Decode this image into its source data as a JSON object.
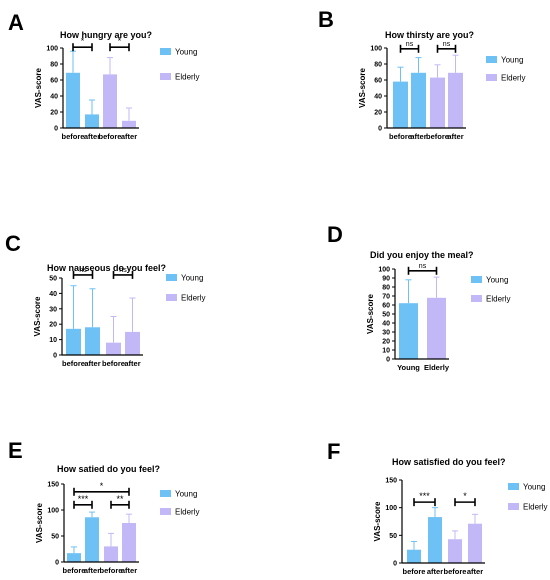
{
  "colors": {
    "young": "#6ec1f5",
    "elderly": "#c3b8f7",
    "axis": "#000000"
  },
  "chart_data": [
    {
      "panel": "A",
      "type": "bar",
      "title": "How hungry are you?",
      "ylabel": "VAS-score",
      "categories": [
        "before",
        "after",
        "before",
        "after"
      ],
      "values": [
        69,
        17,
        67,
        9
      ],
      "errors": [
        27,
        18,
        21,
        16
      ],
      "groups": [
        "young",
        "young",
        "elderly",
        "elderly"
      ],
      "yticks": [
        0,
        20,
        40,
        60,
        80,
        100
      ],
      "ylim": [
        0,
        100
      ],
      "legend": [
        "Young",
        "Elderly"
      ],
      "significance": [
        {
          "from": 0,
          "to": 1,
          "label": "*",
          "y": 101
        },
        {
          "from": 2,
          "to": 3,
          "label": "*",
          "y": 101
        }
      ]
    },
    {
      "panel": "B",
      "type": "bar",
      "title": "How thirsty are you?",
      "ylabel": "VAS-score",
      "categories": [
        "before",
        "after",
        "before",
        "after"
      ],
      "values": [
        58,
        69,
        63,
        69
      ],
      "errors": [
        18,
        19,
        16,
        22
      ],
      "groups": [
        "young",
        "young",
        "elderly",
        "elderly"
      ],
      "yticks": [
        0,
        20,
        40,
        60,
        80,
        100
      ],
      "ylim": [
        0,
        100
      ],
      "legend": [
        "Young",
        "Elderly"
      ],
      "significance": [
        {
          "from": 0,
          "to": 1,
          "label": "ns",
          "y": 99
        },
        {
          "from": 2,
          "to": 3,
          "label": "ns",
          "y": 99
        }
      ]
    },
    {
      "panel": "C",
      "type": "bar",
      "title": "How nauseous do you feel?",
      "ylabel": "VAS-score",
      "categories": [
        "before",
        "after",
        "before",
        "after"
      ],
      "values": [
        17,
        18,
        8,
        15
      ],
      "errors": [
        28,
        25,
        17,
        22
      ],
      "groups": [
        "young",
        "young",
        "elderly",
        "elderly"
      ],
      "yticks": [
        0,
        10,
        20,
        30,
        40,
        50
      ],
      "ylim": [
        0,
        50
      ],
      "legend": [
        "Young",
        "Elderly"
      ],
      "significance": [
        {
          "from": 0,
          "to": 1,
          "label": "ns",
          "y": 52
        },
        {
          "from": 2,
          "to": 3,
          "label": "ns",
          "y": 52
        }
      ]
    },
    {
      "panel": "D",
      "type": "bar",
      "title": "Did you enjoy the meal?",
      "ylabel": "VAS-score",
      "categories": [
        "Young",
        "Elderly"
      ],
      "values": [
        62,
        68
      ],
      "errors": [
        26,
        23
      ],
      "groups": [
        "young",
        "elderly"
      ],
      "yticks": [
        0,
        10,
        20,
        30,
        40,
        50,
        60,
        70,
        80,
        90,
        100
      ],
      "ylim": [
        0,
        100
      ],
      "legend": [
        "Young",
        "Elderly"
      ],
      "significance": [
        {
          "from": 0,
          "to": 1,
          "label": "ns",
          "y": 98
        }
      ]
    },
    {
      "panel": "E",
      "type": "bar",
      "title": "How satied do you feel?",
      "ylabel": "VAS-score",
      "categories": [
        "before",
        "after",
        "before",
        "after"
      ],
      "values": [
        17,
        86,
        30,
        75
      ],
      "errors": [
        12,
        10,
        25,
        17
      ],
      "groups": [
        "young",
        "young",
        "elderly",
        "elderly"
      ],
      "yticks": [
        0,
        50,
        100,
        150
      ],
      "ylim": [
        0,
        150
      ],
      "legend": [
        "Young",
        "Elderly"
      ],
      "significance": [
        {
          "from": 0,
          "to": 1,
          "label": "***",
          "y": 110
        },
        {
          "from": 2,
          "to": 3,
          "label": "**",
          "y": 110
        },
        {
          "from": 0,
          "to": 3,
          "label": "*",
          "y": 135
        }
      ]
    },
    {
      "panel": "F",
      "type": "bar",
      "title": "How satisfied do you feel?",
      "ylabel": "VAS-score",
      "categories": [
        "before",
        "after",
        "before",
        "after"
      ],
      "values": [
        24,
        83,
        43,
        71
      ],
      "errors": [
        15,
        17,
        15,
        17
      ],
      "groups": [
        "young",
        "young",
        "elderly",
        "elderly"
      ],
      "yticks": [
        0,
        50,
        100,
        150
      ],
      "ylim": [
        0,
        150
      ],
      "legend": [
        "Young",
        "Elderly"
      ],
      "significance": [
        {
          "from": 0,
          "to": 1,
          "label": "***",
          "y": 110
        },
        {
          "from": 2,
          "to": 3,
          "label": "*",
          "y": 110
        }
      ]
    }
  ]
}
